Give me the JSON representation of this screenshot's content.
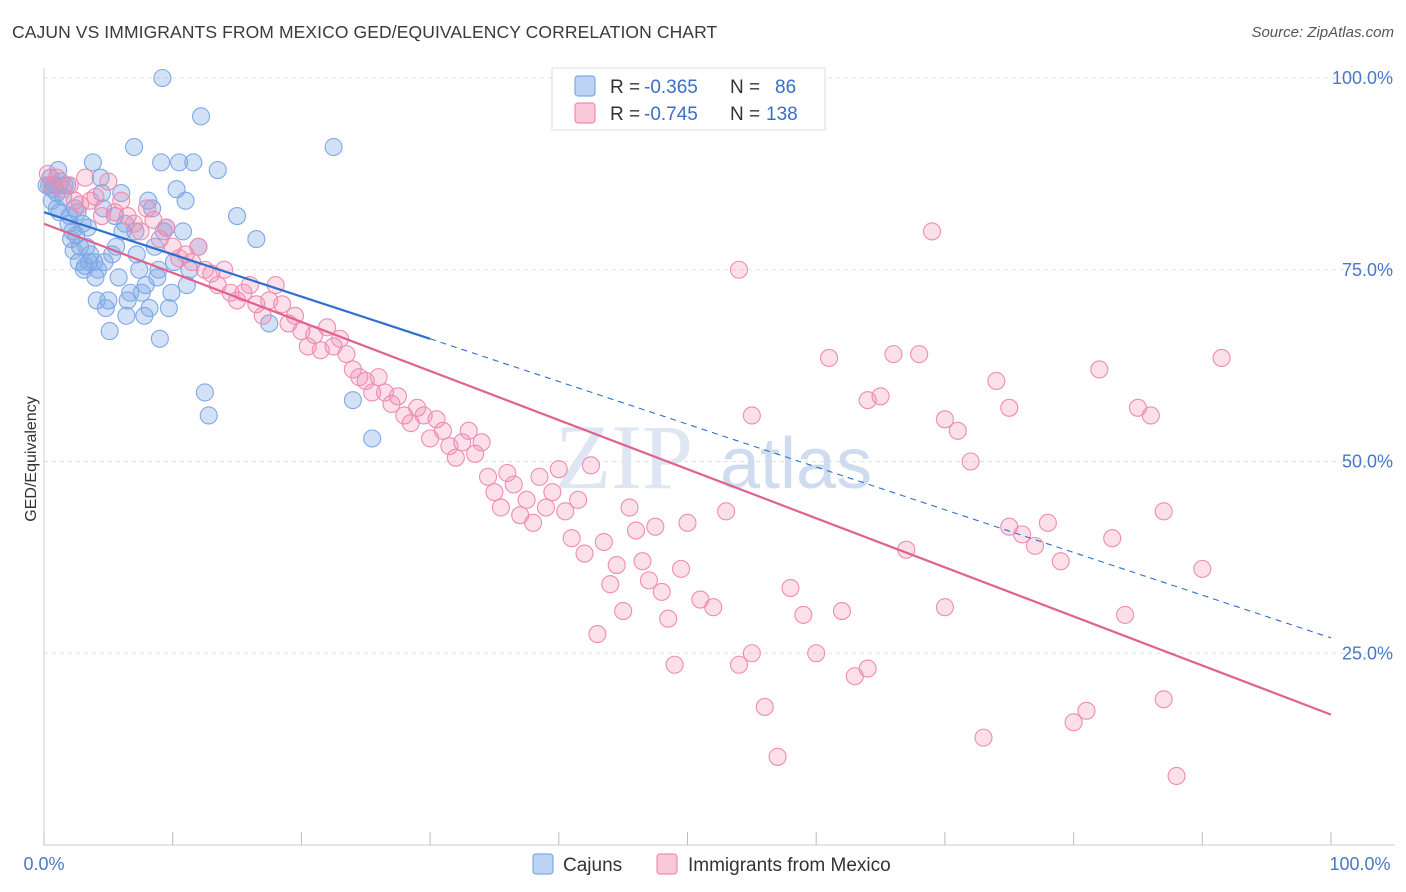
{
  "header": {
    "title": "CAJUN VS IMMIGRANTS FROM MEXICO GED/EQUIVALENCY CORRELATION CHART",
    "source": "Source: ZipAtlas.com"
  },
  "watermark": {
    "zip": "ZIP",
    "atlas": "atlas"
  },
  "legend_top": {
    "rows": [
      {
        "r_label": "R = ",
        "r_value": "-0.365",
        "n_label": "N = ",
        "n_value": "86",
        "color": "#7fa9e6"
      },
      {
        "r_label": "R = ",
        "r_value": "-0.745",
        "n_label": "N = ",
        "n_value": "138",
        "color": "#f08cb0"
      }
    ]
  },
  "legend_bottom": {
    "items": [
      "Cajuns",
      "Immigrants from Mexico"
    ]
  },
  "chart_data": {
    "type": "scatter",
    "title": "CAJUN VS IMMIGRANTS FROM MEXICO GED/EQUIVALENCY CORRELATION CHART",
    "xlabel": "",
    "ylabel": "GED/Equivalency",
    "xlim": [
      0,
      100
    ],
    "ylim": [
      0,
      100
    ],
    "x_tick_labels": [
      "0.0%",
      "100.0%"
    ],
    "y_tick_labels": [
      "100.0%",
      "75.0%",
      "50.0%",
      "25.0%"
    ],
    "y_ticks": [
      100,
      75,
      50,
      25
    ],
    "grid": true,
    "series": [
      {
        "name": "Cajuns",
        "color": "#7fa9e6",
        "line_color": "#2f6fd0",
        "trend": {
          "x0": 0,
          "y0": 82.5,
          "x1": 30,
          "y1": 66.0,
          "dashed_to_x": 100,
          "dashed_to_y": 27.0
        },
        "points": [
          [
            0.2,
            86.0
          ],
          [
            0.4,
            86.0
          ],
          [
            0.5,
            87.0
          ],
          [
            0.6,
            84.0
          ],
          [
            0.7,
            85.5
          ],
          [
            0.8,
            86.0
          ],
          [
            1.0,
            85.0
          ],
          [
            1.0,
            83.0
          ],
          [
            1.1,
            88.0
          ],
          [
            1.2,
            82.5
          ],
          [
            1.3,
            86.5
          ],
          [
            1.5,
            84.5
          ],
          [
            1.6,
            86.0
          ],
          [
            1.8,
            86.0
          ],
          [
            1.9,
            81.0
          ],
          [
            2.0,
            82.0
          ],
          [
            2.1,
            79.0
          ],
          [
            2.2,
            80.0
          ],
          [
            2.3,
            77.5
          ],
          [
            2.4,
            83.0
          ],
          [
            2.5,
            79.5
          ],
          [
            2.6,
            82.5
          ],
          [
            2.7,
            76.0
          ],
          [
            2.8,
            78.0
          ],
          [
            3.0,
            81.0
          ],
          [
            3.1,
            75.0
          ],
          [
            3.2,
            75.5
          ],
          [
            3.3,
            78.0
          ],
          [
            3.4,
            80.5
          ],
          [
            3.5,
            76.0
          ],
          [
            3.6,
            77.0
          ],
          [
            3.8,
            89.0
          ],
          [
            3.9,
            76.0
          ],
          [
            4.0,
            74.0
          ],
          [
            4.1,
            71.0
          ],
          [
            4.2,
            75.0
          ],
          [
            4.4,
            87.0
          ],
          [
            4.5,
            85.0
          ],
          [
            4.6,
            83.0
          ],
          [
            4.7,
            76.0
          ],
          [
            4.8,
            70.0
          ],
          [
            5.0,
            71.0
          ],
          [
            5.1,
            67.0
          ],
          [
            5.3,
            77.0
          ],
          [
            5.5,
            82.0
          ],
          [
            5.6,
            78.0
          ],
          [
            5.8,
            74.0
          ],
          [
            6.0,
            85.0
          ],
          [
            6.1,
            80.0
          ],
          [
            6.3,
            81.0
          ],
          [
            6.4,
            69.0
          ],
          [
            6.5,
            71.0
          ],
          [
            6.7,
            72.0
          ],
          [
            7.0,
            91.0
          ],
          [
            7.1,
            80.0
          ],
          [
            7.2,
            77.0
          ],
          [
            7.4,
            75.0
          ],
          [
            7.6,
            72.0
          ],
          [
            7.8,
            69.0
          ],
          [
            7.9,
            73.0
          ],
          [
            8.1,
            84.0
          ],
          [
            8.2,
            70.0
          ],
          [
            8.4,
            83.0
          ],
          [
            8.6,
            78.0
          ],
          [
            8.8,
            74.0
          ],
          [
            8.9,
            75.0
          ],
          [
            9.0,
            66.0
          ],
          [
            9.1,
            89.0
          ],
          [
            9.3,
            80.0
          ],
          [
            9.5,
            80.5
          ],
          [
            9.7,
            70.0
          ],
          [
            9.9,
            72.0
          ],
          [
            10.1,
            76.0
          ],
          [
            10.3,
            85.5
          ],
          [
            10.5,
            89.0
          ],
          [
            10.8,
            80.0
          ],
          [
            11.0,
            84.0
          ],
          [
            11.1,
            73.0
          ],
          [
            11.3,
            75.0
          ],
          [
            11.6,
            89.0
          ],
          [
            12.0,
            78.0
          ],
          [
            12.2,
            95.0
          ],
          [
            12.5,
            59.0
          ],
          [
            12.8,
            56.0
          ],
          [
            13.5,
            88.0
          ],
          [
            15.0,
            82.0
          ],
          [
            16.5,
            79.0
          ],
          [
            17.5,
            68.0
          ],
          [
            22.5,
            91.0
          ],
          [
            24.0,
            58.0
          ],
          [
            25.5,
            53.0
          ],
          [
            9.2,
            100.0
          ]
        ]
      },
      {
        "name": "Immigrants from Mexico",
        "color": "#f08cb0",
        "line_color": "#e0628e",
        "trend": {
          "x0": 0,
          "y0": 81.0,
          "x1": 100,
          "y1": 17.0
        },
        "points": [
          [
            0.3,
            87.5
          ],
          [
            0.6,
            86.0
          ],
          [
            1.0,
            87.0
          ],
          [
            1.5,
            85.5
          ],
          [
            2.0,
            86.0
          ],
          [
            2.4,
            84.0
          ],
          [
            2.8,
            83.5
          ],
          [
            3.2,
            87.0
          ],
          [
            3.6,
            84.0
          ],
          [
            4.0,
            84.5
          ],
          [
            4.5,
            82.0
          ],
          [
            5.0,
            86.5
          ],
          [
            5.5,
            82.5
          ],
          [
            6.0,
            84.0
          ],
          [
            6.5,
            82.0
          ],
          [
            7.0,
            81.0
          ],
          [
            7.5,
            80.0
          ],
          [
            8.0,
            83.0
          ],
          [
            8.5,
            81.5
          ],
          [
            9.0,
            79.0
          ],
          [
            9.5,
            80.5
          ],
          [
            10.0,
            78.0
          ],
          [
            10.5,
            76.5
          ],
          [
            11.0,
            77.0
          ],
          [
            11.5,
            76.0
          ],
          [
            12.0,
            78.0
          ],
          [
            12.5,
            75.0
          ],
          [
            13.0,
            74.5
          ],
          [
            13.5,
            73.0
          ],
          [
            14.0,
            75.0
          ],
          [
            14.5,
            72.0
          ],
          [
            15.0,
            71.0
          ],
          [
            15.5,
            72.0
          ],
          [
            16.0,
            73.0
          ],
          [
            16.5,
            70.5
          ],
          [
            17.0,
            69.0
          ],
          [
            17.5,
            71.0
          ],
          [
            18.0,
            73.0
          ],
          [
            18.5,
            70.5
          ],
          [
            19.0,
            68.0
          ],
          [
            19.5,
            69.0
          ],
          [
            20.0,
            67.0
          ],
          [
            20.5,
            65.0
          ],
          [
            21.0,
            66.5
          ],
          [
            21.5,
            64.5
          ],
          [
            22.0,
            67.5
          ],
          [
            22.5,
            65.0
          ],
          [
            23.0,
            66.0
          ],
          [
            23.5,
            64.0
          ],
          [
            24.0,
            62.0
          ],
          [
            24.5,
            61.0
          ],
          [
            25.0,
            60.5
          ],
          [
            25.5,
            59.0
          ],
          [
            26.0,
            61.0
          ],
          [
            26.5,
            59.0
          ],
          [
            27.0,
            57.5
          ],
          [
            27.5,
            58.5
          ],
          [
            28.0,
            56.0
          ],
          [
            28.5,
            55.0
          ],
          [
            29.0,
            57.0
          ],
          [
            29.5,
            56.0
          ],
          [
            30.0,
            53.0
          ],
          [
            30.5,
            55.5
          ],
          [
            31.0,
            54.0
          ],
          [
            31.5,
            52.0
          ],
          [
            32.0,
            50.5
          ],
          [
            32.5,
            52.5
          ],
          [
            33.0,
            54.0
          ],
          [
            33.5,
            51.0
          ],
          [
            34.0,
            52.5
          ],
          [
            34.5,
            48.0
          ],
          [
            35.0,
            46.0
          ],
          [
            35.5,
            44.0
          ],
          [
            36.0,
            48.5
          ],
          [
            36.5,
            47.0
          ],
          [
            37.0,
            43.0
          ],
          [
            37.5,
            45.0
          ],
          [
            38.0,
            42.0
          ],
          [
            38.5,
            48.0
          ],
          [
            39.0,
            44.0
          ],
          [
            39.5,
            46.0
          ],
          [
            40.0,
            49.0
          ],
          [
            40.5,
            43.5
          ],
          [
            41.0,
            40.0
          ],
          [
            41.5,
            45.0
          ],
          [
            42.0,
            38.0
          ],
          [
            42.5,
            49.5
          ],
          [
            43.0,
            27.5
          ],
          [
            43.5,
            39.5
          ],
          [
            44.0,
            34.0
          ],
          [
            44.5,
            36.5
          ],
          [
            45.0,
            30.5
          ],
          [
            45.5,
            44.0
          ],
          [
            46.0,
            41.0
          ],
          [
            46.5,
            37.0
          ],
          [
            47.0,
            34.5
          ],
          [
            47.5,
            41.5
          ],
          [
            48.0,
            33.0
          ],
          [
            48.5,
            29.5
          ],
          [
            49.0,
            23.5
          ],
          [
            49.5,
            36.0
          ],
          [
            50.0,
            42.0
          ],
          [
            51.0,
            32.0
          ],
          [
            52.0,
            31.0
          ],
          [
            53.0,
            43.5
          ],
          [
            54.0,
            23.5
          ],
          [
            55.0,
            25.0
          ],
          [
            56.0,
            18.0
          ],
          [
            57.0,
            11.5
          ],
          [
            58.0,
            33.5
          ],
          [
            59.0,
            30.0
          ],
          [
            60.0,
            25.0
          ],
          [
            61.0,
            63.5
          ],
          [
            62.0,
            30.5
          ],
          [
            63.0,
            22.0
          ],
          [
            64.0,
            23.0
          ],
          [
            65.0,
            58.5
          ],
          [
            66.0,
            64.0
          ],
          [
            67.0,
            38.5
          ],
          [
            68.0,
            64.0
          ],
          [
            69.0,
            80.0
          ],
          [
            70.0,
            31.0
          ],
          [
            71.0,
            54.0
          ],
          [
            72.0,
            50.0
          ],
          [
            73.0,
            14.0
          ],
          [
            74.0,
            60.5
          ],
          [
            75.0,
            41.5
          ],
          [
            76.0,
            40.5
          ],
          [
            77.0,
            39.0
          ],
          [
            78.0,
            42.0
          ],
          [
            79.0,
            37.0
          ],
          [
            80.0,
            16.0
          ],
          [
            81.0,
            17.5
          ],
          [
            82.0,
            62.0
          ],
          [
            83.0,
            40.0
          ],
          [
            84.0,
            30.0
          ],
          [
            85.0,
            57.0
          ],
          [
            86.0,
            56.0
          ],
          [
            87.0,
            19.0
          ],
          [
            88.0,
            9.0
          ],
          [
            91.5,
            63.5
          ],
          [
            55.0,
            56.0
          ],
          [
            64.0,
            58.0
          ],
          [
            54.0,
            75.0
          ],
          [
            75.0,
            57.0
          ],
          [
            70.0,
            55.5
          ],
          [
            90.0,
            36.0
          ],
          [
            87.0,
            43.5
          ]
        ]
      }
    ]
  }
}
